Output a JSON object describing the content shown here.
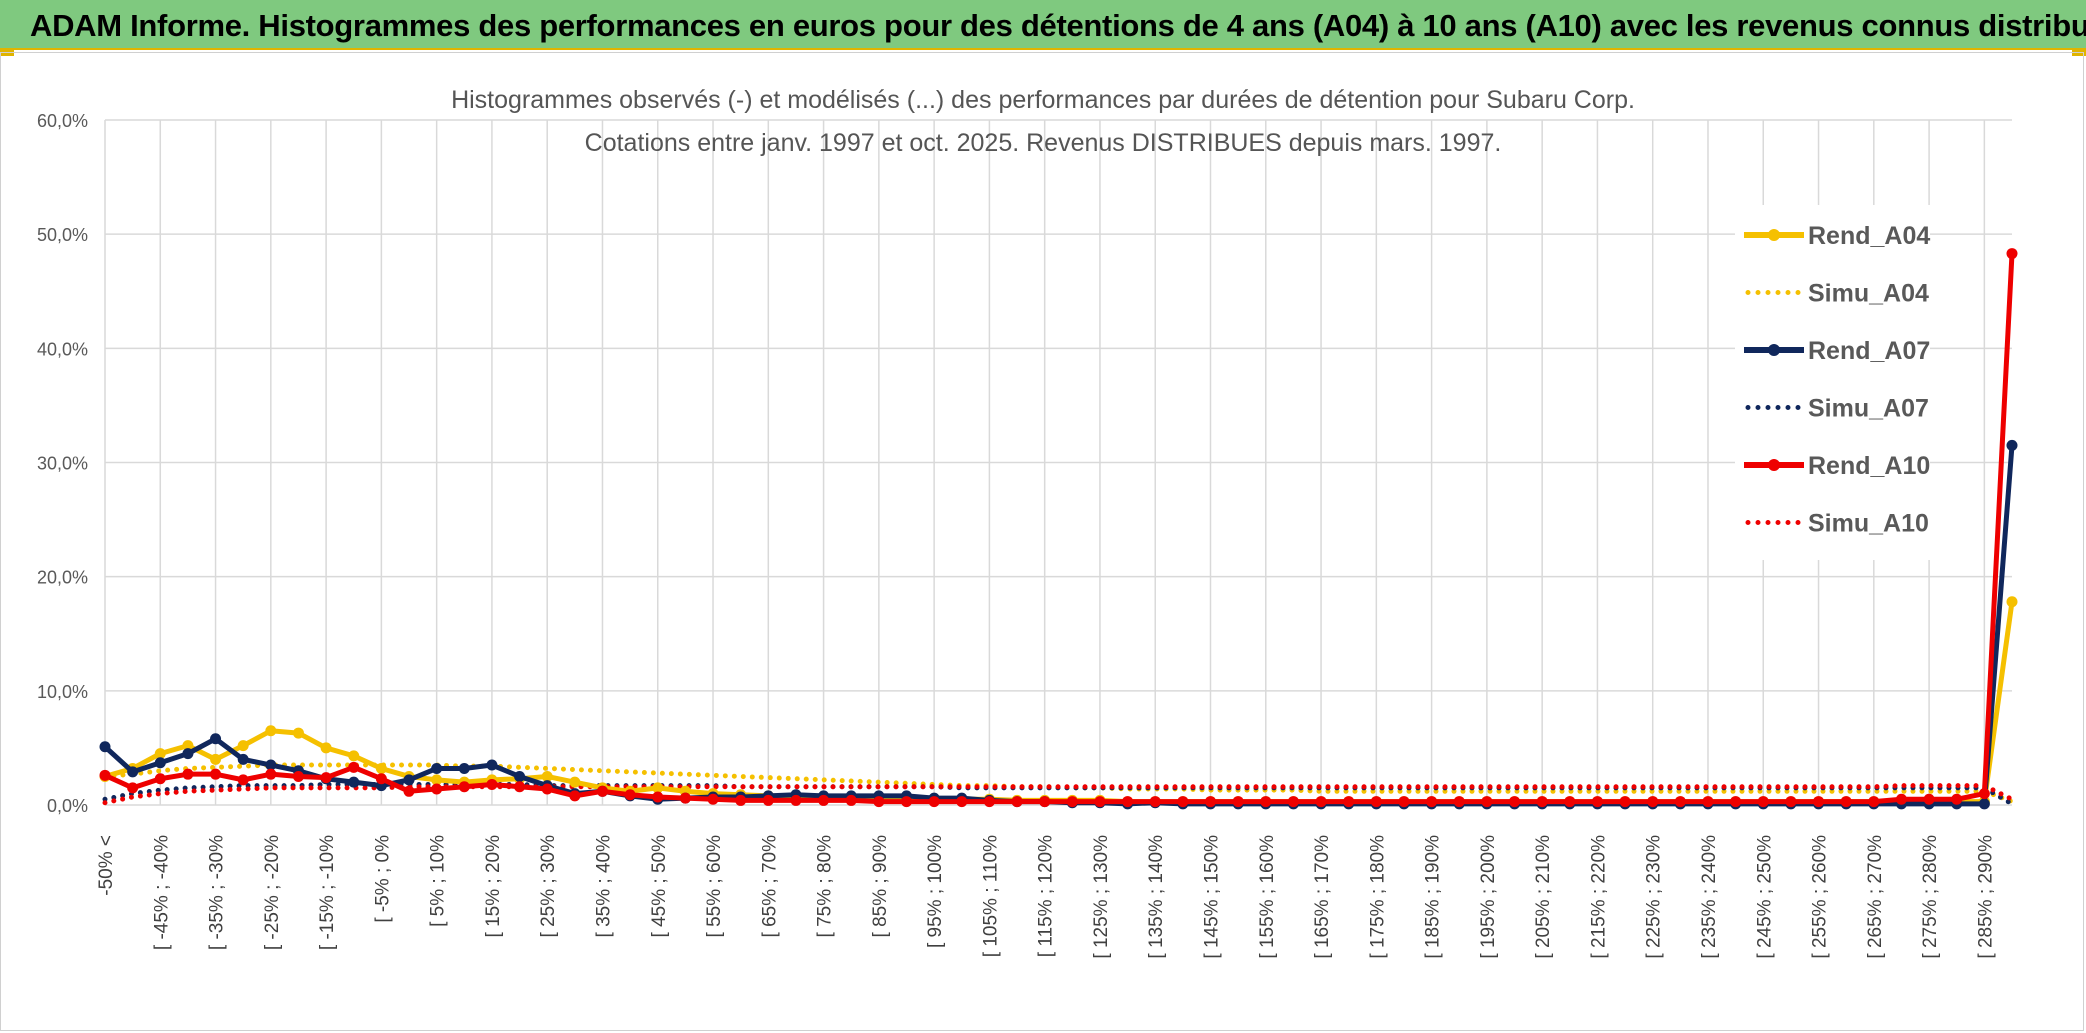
{
  "header": {
    "title": "ADAM Informe. Histogrammes des performances en euros pour des détentions de 4 ans (A04) à 10 ans (A10) avec les revenus connus distribués"
  },
  "chart_data": {
    "type": "line",
    "title": "Histogrammes observés (-) et modélisés (...) des performances par durées de détention pour Subaru Corp.",
    "subtitle": "Cotations entre janv. 1997 et oct. 2025. Revenus DISTRIBUES depuis mars. 1997.",
    "ylim": [
      0,
      60
    ],
    "yticks": [
      "0,0%",
      "10,0%",
      "20,0%",
      "30,0%",
      "40,0%",
      "50,0%",
      "60,0%"
    ],
    "grid": true,
    "legend_position": "right",
    "x_tick_labels": [
      "-50% <",
      "[ -45% ; -40%",
      "[ -35% ; -30%",
      "[ -25% ; -20%",
      "[ -15% ; -10%",
      "[ -5% ; 0%",
      "[ 5% ; 10%",
      "[ 15% ; 20%",
      "[ 25% ; 30%",
      "[ 35% ; 40%",
      "[ 45% ; 50%",
      "[ 55% ; 60%",
      "[ 65% ; 70%",
      "[ 75% ; 80%",
      "[ 85% ; 90%",
      "[ 95% ; 100%",
      "[ 105% ; 110%",
      "[ 115% ; 120%",
      "[ 125% ; 130%",
      "[ 135% ; 140%",
      "[ 145% ; 150%",
      "[ 155% ; 160%",
      "[ 165% ; 170%",
      "[ 175% ; 180%",
      "[ 185% ; 190%",
      "[ 195% ; 200%",
      "[ 205% ; 210%",
      "[ 215% ; 220%",
      "[ 225% ; 230%",
      "[ 235% ; 240%",
      "[ 245% ; 250%",
      "[ 255% ; 260%",
      "[ 265% ; 270%",
      "[ 275% ; 280%",
      "[ 285% ; 290%"
    ],
    "x_count": 70,
    "series": [
      {
        "name": "Rend_A04",
        "color": "#f5c000",
        "style": "solid",
        "marker": true,
        "values": [
          2.5,
          3.2,
          4.5,
          5.2,
          4.0,
          5.2,
          6.5,
          6.3,
          5.0,
          4.3,
          3.2,
          2.5,
          2.2,
          2.0,
          2.2,
          2.3,
          2.5,
          2.0,
          1.5,
          1.2,
          1.5,
          1.2,
          1.0,
          0.9,
          0.8,
          0.8,
          0.7,
          0.7,
          0.6,
          0.6,
          0.5,
          0.5,
          0.5,
          0.4,
          0.4,
          0.4,
          0.4,
          0.3,
          0.3,
          0.3,
          0.3,
          0.3,
          0.3,
          0.3,
          0.3,
          0.3,
          0.3,
          0.3,
          0.3,
          0.3,
          0.3,
          0.3,
          0.3,
          0.3,
          0.3,
          0.3,
          0.3,
          0.3,
          0.3,
          0.3,
          0.3,
          0.3,
          0.3,
          0.3,
          0.3,
          0.3,
          0.3,
          0.3,
          0.3,
          17.8
        ]
      },
      {
        "name": "Simu_A04",
        "color": "#f5c000",
        "style": "dotted",
        "marker": false,
        "values": [
          2.5,
          2.7,
          3.0,
          3.2,
          3.3,
          3.4,
          3.5,
          3.5,
          3.5,
          3.5,
          3.5,
          3.5,
          3.5,
          3.4,
          3.4,
          3.3,
          3.2,
          3.1,
          3.0,
          2.9,
          2.8,
          2.7,
          2.6,
          2.5,
          2.4,
          2.3,
          2.2,
          2.1,
          2.0,
          1.9,
          1.8,
          1.7,
          1.7,
          1.6,
          1.6,
          1.5,
          1.5,
          1.4,
          1.4,
          1.4,
          1.3,
          1.3,
          1.3,
          1.3,
          1.2,
          1.2,
          1.2,
          1.2,
          1.2,
          1.2,
          1.2,
          1.2,
          1.2,
          1.2,
          1.2,
          1.2,
          1.2,
          1.2,
          1.2,
          1.2,
          1.2,
          1.2,
          1.2,
          1.2,
          1.2,
          1.2,
          1.2,
          1.2,
          1.2,
          0.3
        ]
      },
      {
        "name": "Rend_A07",
        "color": "#10275c",
        "style": "solid",
        "marker": true,
        "values": [
          5.1,
          2.9,
          3.7,
          4.5,
          5.8,
          4.0,
          3.5,
          3.0,
          2.3,
          2.0,
          1.7,
          2.2,
          3.2,
          3.2,
          3.5,
          2.5,
          1.7,
          1.0,
          1.2,
          0.8,
          0.5,
          0.6,
          0.7,
          0.7,
          0.8,
          0.9,
          0.8,
          0.8,
          0.8,
          0.8,
          0.6,
          0.6,
          0.4,
          0.3,
          0.3,
          0.2,
          0.2,
          0.1,
          0.2,
          0.1,
          0.1,
          0.1,
          0.1,
          0.1,
          0.1,
          0.1,
          0.1,
          0.1,
          0.1,
          0.1,
          0.1,
          0.1,
          0.1,
          0.1,
          0.1,
          0.1,
          0.1,
          0.1,
          0.1,
          0.1,
          0.1,
          0.1,
          0.1,
          0.1,
          0.1,
          0.1,
          0.1,
          0.1,
          0.1,
          31.5
        ]
      },
      {
        "name": "Simu_A07",
        "color": "#10275c",
        "style": "dotted",
        "marker": false,
        "values": [
          0.5,
          1.0,
          1.3,
          1.5,
          1.6,
          1.7,
          1.7,
          1.7,
          1.8,
          1.8,
          1.8,
          1.8,
          1.8,
          1.8,
          1.8,
          1.8,
          1.7,
          1.7,
          1.7,
          1.7,
          1.7,
          1.7,
          1.7,
          1.6,
          1.6,
          1.6,
          1.6,
          1.6,
          1.6,
          1.6,
          1.6,
          1.5,
          1.5,
          1.5,
          1.5,
          1.5,
          1.5,
          1.5,
          1.5,
          1.5,
          1.5,
          1.5,
          1.5,
          1.5,
          1.5,
          1.5,
          1.5,
          1.5,
          1.5,
          1.5,
          1.5,
          1.5,
          1.5,
          1.5,
          1.5,
          1.5,
          1.5,
          1.5,
          1.5,
          1.5,
          1.5,
          1.5,
          1.5,
          1.5,
          1.5,
          1.5,
          1.5,
          1.5,
          1.5,
          0.1
        ]
      },
      {
        "name": "Rend_A10",
        "color": "#ee0000",
        "style": "solid",
        "marker": true,
        "values": [
          2.6,
          1.5,
          2.3,
          2.7,
          2.7,
          2.2,
          2.7,
          2.5,
          2.4,
          3.3,
          2.3,
          1.2,
          1.4,
          1.6,
          1.8,
          1.6,
          1.4,
          0.8,
          1.2,
          0.9,
          0.7,
          0.6,
          0.5,
          0.4,
          0.4,
          0.4,
          0.4,
          0.4,
          0.3,
          0.3,
          0.3,
          0.3,
          0.3,
          0.3,
          0.3,
          0.3,
          0.3,
          0.3,
          0.3,
          0.3,
          0.3,
          0.3,
          0.3,
          0.3,
          0.3,
          0.3,
          0.3,
          0.3,
          0.3,
          0.3,
          0.3,
          0.3,
          0.3,
          0.3,
          0.3,
          0.3,
          0.3,
          0.3,
          0.3,
          0.3,
          0.3,
          0.3,
          0.3,
          0.3,
          0.3,
          0.5,
          0.5,
          0.5,
          1.0,
          48.3
        ]
      },
      {
        "name": "Simu_A10",
        "color": "#ee0000",
        "style": "dotted",
        "marker": false,
        "values": [
          0.2,
          0.7,
          1.0,
          1.2,
          1.3,
          1.4,
          1.5,
          1.5,
          1.5,
          1.5,
          1.5,
          1.6,
          1.6,
          1.6,
          1.6,
          1.6,
          1.6,
          1.6,
          1.6,
          1.6,
          1.6,
          1.6,
          1.6,
          1.6,
          1.6,
          1.6,
          1.6,
          1.6,
          1.6,
          1.6,
          1.6,
          1.6,
          1.6,
          1.6,
          1.6,
          1.6,
          1.6,
          1.6,
          1.6,
          1.6,
          1.6,
          1.6,
          1.6,
          1.6,
          1.6,
          1.6,
          1.6,
          1.6,
          1.6,
          1.6,
          1.6,
          1.6,
          1.6,
          1.6,
          1.6,
          1.6,
          1.6,
          1.6,
          1.6,
          1.6,
          1.6,
          1.6,
          1.6,
          1.6,
          1.6,
          1.7,
          1.7,
          1.7,
          1.7,
          0.5
        ]
      }
    ]
  }
}
